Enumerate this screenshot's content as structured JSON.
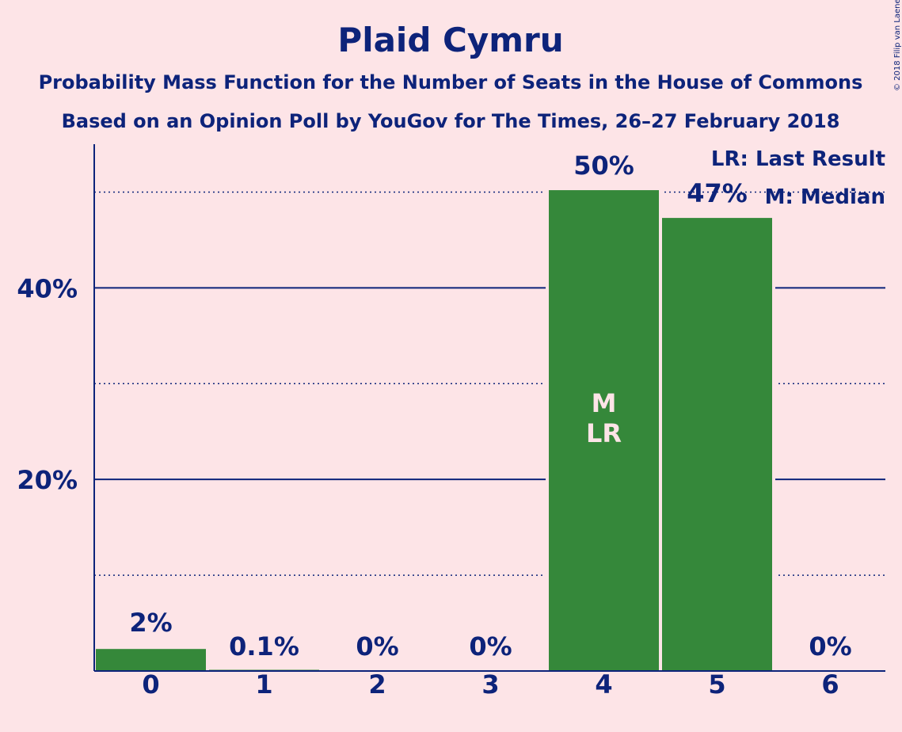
{
  "chart_data": {
    "type": "bar",
    "title": "Plaid Cymru",
    "subtitle1": "Probability Mass Function for the Number of Seats in the House of Commons",
    "subtitle2": "Based on an Opinion Poll by YouGov for The Times, 26–27 February 2018",
    "categories": [
      "0",
      "1",
      "2",
      "3",
      "4",
      "5",
      "6"
    ],
    "values": [
      2.3,
      0.1,
      0,
      0,
      50.2,
      47.3,
      0
    ],
    "value_labels": [
      "2%",
      "0.1%",
      "0%",
      "0%",
      "50%",
      "47%",
      "0%"
    ],
    "ylim": [
      0,
      55
    ],
    "ytick_values": [
      20,
      40
    ],
    "ytick_labels": [
      "20%",
      "40%"
    ],
    "minor_gridlines": [
      10,
      30,
      50
    ],
    "bar_color": "#35883a",
    "text_color": "#0d237a",
    "background": "#fde4e7",
    "bar_markers": {
      "index": 4,
      "lines": [
        "M",
        "LR"
      ]
    },
    "legend": {
      "placement": "top-right",
      "lines": [
        "LR: Last Result",
        "M: Median"
      ]
    },
    "copyright": "© 2018 Filip van Laenen"
  }
}
